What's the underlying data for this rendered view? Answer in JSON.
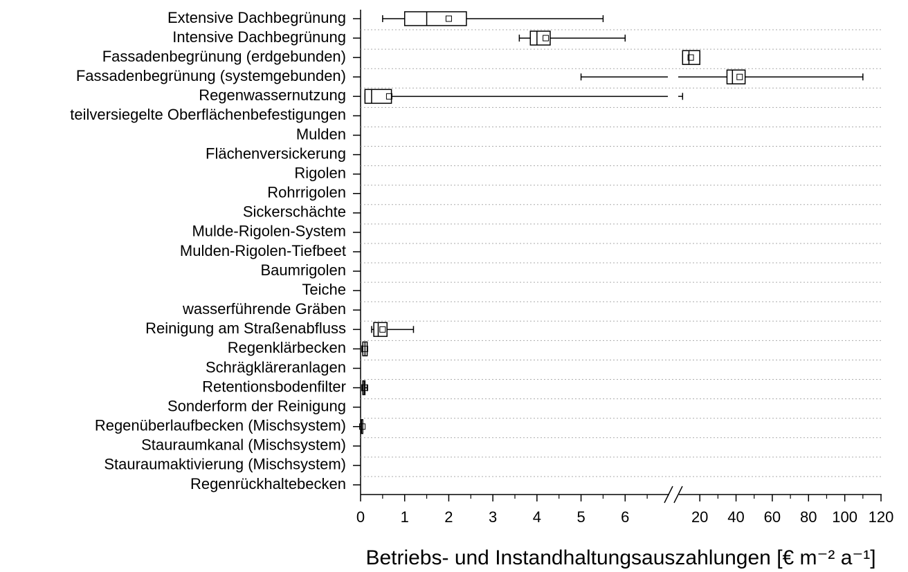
{
  "chart_data": {
    "type": "boxplot",
    "xlabel": "Betriebs- und Instandhaltungsauszahlungen [€ m⁻² a⁻¹]",
    "categories": [
      "Extensive Dachbegrünung",
      "Intensive Dachbegrünung",
      "Fassadenbegrünung (erdgebunden)",
      "Fassadenbegrünung (systemgebunden)",
      "Regenwassernutzung",
      "teilversiegelte Oberflächenbefestigungen",
      "Mulden",
      "Flächenversickerung",
      "Rigolen",
      "Rohrrigolen",
      "Sickerschächte",
      "Mulde-Rigolen-System",
      "Mulden-Rigolen-Tiefbeet",
      "Baumrigolen",
      "Teiche",
      "wasserführende Gräben",
      "Reinigung am Straßenabfluss",
      "Regenklärbecken",
      "Schrägkläreranlagen",
      "Retentionsbodenfilter",
      "Sonderform der Reinigung",
      "Regenüberlaufbecken (Mischsystem)",
      "Stauraumkanal (Mischsystem)",
      "Stauraumaktivierung (Mischsystem)",
      "Regenrückhaltebecken"
    ],
    "boxes": [
      {
        "whislo": 0.5,
        "q1": 1.0,
        "med": 1.5,
        "q3": 2.4,
        "whishi": 5.5,
        "mean": 2.0
      },
      {
        "whislo": 3.6,
        "q1": 3.85,
        "med": 4.0,
        "q3": 4.3,
        "whishi": 6.0,
        "mean": 4.2
      },
      {
        "whislo": 10.5,
        "q1": 10.5,
        "med": 14,
        "q3": 20,
        "whishi": 20,
        "mean": 15
      },
      {
        "whislo": 5.0,
        "q1": 35,
        "med": 38,
        "q3": 45,
        "whishi": 110,
        "mean": 42
      },
      {
        "whislo": 0.1,
        "q1": 0.1,
        "med": 0.25,
        "q3": 0.7,
        "whishi": 10.5,
        "mean": 0.65
      },
      null,
      null,
      null,
      null,
      null,
      null,
      null,
      null,
      null,
      null,
      null,
      {
        "whislo": 0.25,
        "q1": 0.3,
        "med": 0.4,
        "q3": 0.6,
        "whishi": 1.2,
        "mean": 0.5
      },
      {
        "whislo": 0.03,
        "q1": 0.05,
        "med": 0.1,
        "q3": 0.15,
        "whishi": 0.15,
        "mean": 0.1
      },
      null,
      {
        "whislo": 0.03,
        "q1": 0.05,
        "med": 0.08,
        "q3": 0.1,
        "whishi": 0.15,
        "mean": 0.1
      },
      null,
      {
        "whislo": 0.01,
        "q1": 0.01,
        "med": 0.02,
        "q3": 0.05,
        "whishi": 0.05,
        "mean": 0.04
      },
      null,
      null,
      null
    ],
    "x_segments": [
      {
        "xlim": [
          0,
          7
        ],
        "xticks": [
          0,
          1,
          2,
          3,
          4,
          5,
          6
        ],
        "xminorticks": [
          0.5,
          1.5,
          2.5,
          3.5,
          4.5,
          5.5,
          6.5
        ]
      },
      {
        "xlim": [
          10,
          120
        ],
        "xticks": [
          20,
          40,
          60,
          80,
          100,
          120
        ],
        "xminorticks": [
          30,
          50,
          70,
          90,
          110
        ]
      }
    ],
    "grid": true
  }
}
